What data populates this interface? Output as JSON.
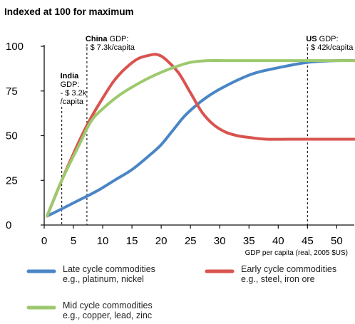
{
  "chart_data": {
    "type": "line",
    "title": "Indexed at 100 for maximum",
    "xlabel": "GDP per capita (real, 2005 $US)",
    "ylabel": "",
    "xlim": [
      0,
      53
    ],
    "ylim": [
      0,
      100
    ],
    "x_ticks": [
      0,
      5,
      10,
      15,
      20,
      25,
      30,
      35,
      40,
      45,
      50
    ],
    "y_ticks": [
      0,
      25,
      50,
      75,
      100
    ],
    "grid": false,
    "legend_position": "bottom",
    "series": [
      {
        "label": "Late cycle commodities",
        "sublabel": "e.g., platinum, nickel",
        "color": "#4a86c5",
        "x": [
          0.5,
          3,
          6,
          9,
          12,
          15,
          18,
          20,
          22,
          24,
          26,
          28,
          30,
          33,
          36,
          40,
          45,
          50,
          53
        ],
        "y": [
          5,
          9,
          14,
          19,
          25,
          31,
          39,
          45,
          53,
          61,
          67,
          72,
          76,
          81,
          85,
          88,
          91,
          92,
          92
        ]
      },
      {
        "label": "Early cycle commodities",
        "sublabel": "e.g., steel, iron ore",
        "color": "#d9534f",
        "x": [
          0.5,
          3,
          6,
          8,
          10,
          12,
          14,
          16,
          18,
          19,
          20,
          21,
          23,
          25,
          27,
          29,
          31,
          33,
          35,
          38,
          42,
          46,
          50,
          53
        ],
        "y": [
          5,
          25,
          47,
          60,
          71,
          81,
          88,
          93,
          95,
          95.5,
          94.5,
          92,
          85,
          74,
          63,
          56,
          52,
          50,
          49,
          48,
          48,
          48,
          48,
          48
        ]
      },
      {
        "label": "Mid cycle commodities",
        "sublabel": "e.g., copper, lead, zinc",
        "color": "#9dc96e",
        "x": [
          0.5,
          3,
          6,
          8,
          10,
          13,
          16,
          19,
          22,
          25,
          28,
          31,
          35,
          40,
          45,
          50,
          53
        ],
        "y": [
          5,
          25,
          45,
          58,
          65,
          73,
          79,
          84,
          88,
          91,
          92,
          92,
          92,
          92,
          92,
          92,
          92
        ]
      }
    ],
    "annotations": [
      {
        "x": 3,
        "bold": "India",
        "lines": [
          "GDP:",
          "- $ 3.2k",
          "/capita"
        ]
      },
      {
        "x": 7.3,
        "bold": "China",
        "suffix": " GDP:",
        "lines": [
          "- $ 7.3k/capita"
        ]
      },
      {
        "x": 45,
        "bold": "US",
        "suffix": " GDP:",
        "lines": [
          "- $ 42k/capita"
        ]
      }
    ]
  }
}
